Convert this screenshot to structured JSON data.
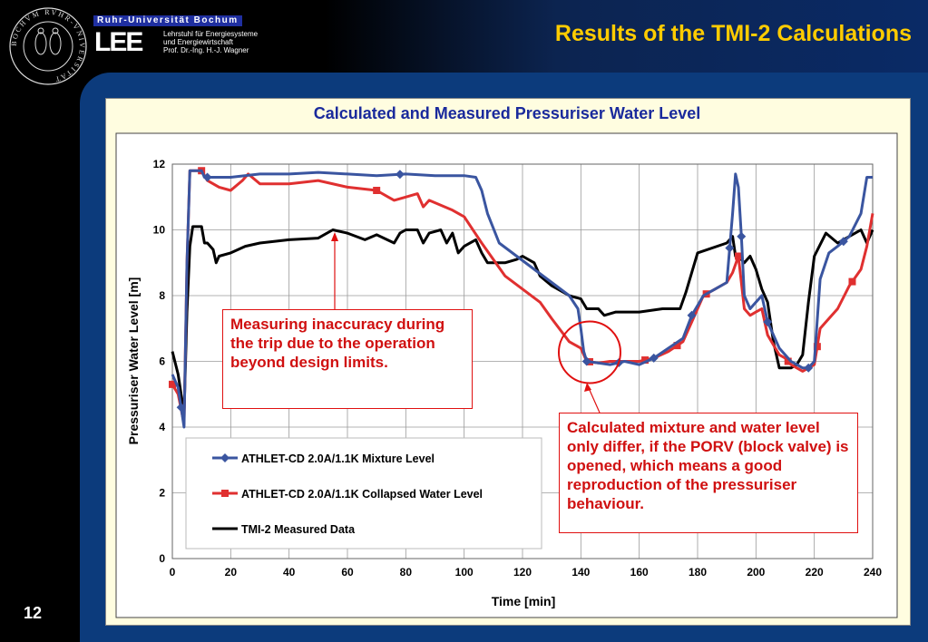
{
  "header": {
    "university": "Ruhr-Universität Bochum",
    "institute_logo": "LEE",
    "institute_line1": "Lehrstuhl für Energiesysteme",
    "institute_line2": "und Energiewirtschaft",
    "institute_line3": "Prof. Dr.-Ing. H.-J. Wagner",
    "seal_icon": "university-seal-icon",
    "seal_text": "BOCHVM RVHR-VNIVERSITAT"
  },
  "slide": {
    "title": "Results of the TMI-2 Calculations",
    "page_number": "12"
  },
  "colors": {
    "title": "#ffcc00",
    "chart_title": "#1a2a9c",
    "mixture_series": "#3a55a0",
    "collapsed_series": "#e03030",
    "measured_series": "#000000",
    "callout_text": "#d01010",
    "panel_blue": "#0c3b7c"
  },
  "callouts": {
    "left": "Measuring inaccuracy during the trip due to the operation beyond design limits.",
    "right": "Calculated mixture and water level only differ, if the PORV (block valve) is opened, which means a good reproduction of the pressuriser behaviour."
  },
  "chart_data": {
    "type": "line",
    "title": "Calculated and Measured Pressuriser Water Level",
    "xlabel": "Time [min]",
    "ylabel": "Pressuriser Water Level [m]",
    "xlim": [
      0,
      240
    ],
    "ylim": [
      0,
      12
    ],
    "xticks": [
      0,
      20,
      40,
      60,
      80,
      100,
      120,
      140,
      160,
      180,
      200,
      220,
      240
    ],
    "yticks": [
      0,
      2,
      4,
      6,
      8,
      10,
      12
    ],
    "grid": true,
    "legend_position": "bottom-left",
    "highlight_circle": {
      "x": 143,
      "y": 6.0
    },
    "series": [
      {
        "name": "ATHLET-CD 2.0A/1.1K Mixture Level",
        "color": "#3a55a0",
        "marker": "diamond",
        "x": [
          0,
          2,
          4,
          5,
          6,
          7,
          8,
          10,
          11,
          12,
          20,
          30,
          40,
          50,
          60,
          70,
          80,
          90,
          100,
          104,
          106,
          108,
          112,
          118,
          124,
          130,
          136,
          139,
          140,
          141,
          142,
          146,
          150,
          155,
          160,
          165,
          170,
          175,
          178,
          182,
          186,
          190,
          192,
          193,
          194,
          195,
          196,
          198,
          200,
          202,
          204,
          206,
          208,
          210,
          212,
          214,
          216,
          218,
          220,
          222,
          225,
          228,
          232,
          236,
          238,
          240
        ],
        "y": [
          5.6,
          5.2,
          4.0,
          9.0,
          11.8,
          11.8,
          11.8,
          11.8,
          11.6,
          11.6,
          11.6,
          11.7,
          11.7,
          11.75,
          11.7,
          11.65,
          11.7,
          11.65,
          11.65,
          11.6,
          11.2,
          10.5,
          9.6,
          9.2,
          8.8,
          8.4,
          8.0,
          7.6,
          7.0,
          6.3,
          6.0,
          5.95,
          5.9,
          6.0,
          5.9,
          6.1,
          6.4,
          6.7,
          7.4,
          8.0,
          8.2,
          8.4,
          10.5,
          11.7,
          11.3,
          9.8,
          8.0,
          7.6,
          7.8,
          8.0,
          7.2,
          6.8,
          6.4,
          6.2,
          6.0,
          5.9,
          5.8,
          5.8,
          6.0,
          8.5,
          9.3,
          9.5,
          9.8,
          10.5,
          11.6,
          11.6
        ],
        "marker_x": [
          3,
          12,
          78,
          142,
          153,
          165,
          178,
          191,
          195,
          204,
          218,
          230
        ]
      },
      {
        "name": "ATHLET-CD 2.0A/1.1K Collapsed Water Level",
        "color": "#e03030",
        "marker": "square",
        "x": [
          0,
          2,
          4,
          5,
          6,
          7,
          10,
          12,
          16,
          20,
          24,
          26,
          30,
          40,
          50,
          60,
          70,
          74,
          76,
          80,
          84,
          86,
          88,
          96,
          100,
          106,
          114,
          120,
          126,
          130,
          136,
          140,
          142,
          146,
          150,
          155,
          160,
          165,
          170,
          175,
          178,
          182,
          186,
          190,
          192,
          194,
          196,
          198,
          200,
          202,
          204,
          206,
          208,
          210,
          212,
          214,
          216,
          218,
          220,
          222,
          224,
          228,
          232,
          236,
          238,
          240
        ],
        "y": [
          5.3,
          5.0,
          4.1,
          9.0,
          11.8,
          11.8,
          11.8,
          11.5,
          11.3,
          11.2,
          11.5,
          11.7,
          11.4,
          11.4,
          11.5,
          11.3,
          11.2,
          11.0,
          10.9,
          11.0,
          11.1,
          10.7,
          10.9,
          10.6,
          10.4,
          9.6,
          8.6,
          8.2,
          7.8,
          7.3,
          6.6,
          6.4,
          6.0,
          5.95,
          6.0,
          6.0,
          6.0,
          6.1,
          6.3,
          6.6,
          7.2,
          8.0,
          8.2,
          8.4,
          8.7,
          9.2,
          7.6,
          7.4,
          7.5,
          7.6,
          6.8,
          6.5,
          6.2,
          6.1,
          5.9,
          5.8,
          5.7,
          5.8,
          5.9,
          7.0,
          7.2,
          7.6,
          8.3,
          8.8,
          9.5,
          10.5
        ],
        "marker_x": [
          0,
          10,
          70,
          143,
          162,
          173,
          183,
          194,
          211,
          221,
          233
        ]
      },
      {
        "name": "TMI-2 Measured Data",
        "color": "#000000",
        "marker": "none",
        "x": [
          0,
          2,
          4,
          5,
          6,
          7,
          10,
          11,
          12,
          14,
          15,
          16,
          20,
          25,
          30,
          40,
          50,
          55,
          60,
          66,
          70,
          76,
          78,
          80,
          84,
          86,
          88,
          92,
          94,
          96,
          98,
          100,
          104,
          106,
          108,
          114,
          118,
          120,
          124,
          126,
          130,
          136,
          140,
          142,
          146,
          148,
          152,
          160,
          168,
          174,
          176,
          180,
          190,
          192,
          193,
          194,
          196,
          198,
          200,
          202,
          204,
          206,
          208,
          210,
          212,
          214,
          216,
          218,
          220,
          224,
          228,
          232,
          236,
          238,
          240
        ],
        "y": [
          6.3,
          5.6,
          4.4,
          7.5,
          9.5,
          10.1,
          10.1,
          9.6,
          9.6,
          9.4,
          9.0,
          9.2,
          9.3,
          9.5,
          9.6,
          9.7,
          9.75,
          10.0,
          9.9,
          9.7,
          9.85,
          9.6,
          9.9,
          10.0,
          10.0,
          9.6,
          9.9,
          10.0,
          9.6,
          9.9,
          9.3,
          9.5,
          9.7,
          9.3,
          9.0,
          9.0,
          9.1,
          9.2,
          9.0,
          8.6,
          8.3,
          8.0,
          7.9,
          7.6,
          7.6,
          7.4,
          7.5,
          7.5,
          7.6,
          7.6,
          8.1,
          9.3,
          9.6,
          9.8,
          9.2,
          9.2,
          9.0,
          9.2,
          8.8,
          8.2,
          7.8,
          6.6,
          5.8,
          5.8,
          5.8,
          5.9,
          6.2,
          7.8,
          9.2,
          9.9,
          9.6,
          9.8,
          10.0,
          9.6,
          10.0
        ]
      }
    ]
  }
}
